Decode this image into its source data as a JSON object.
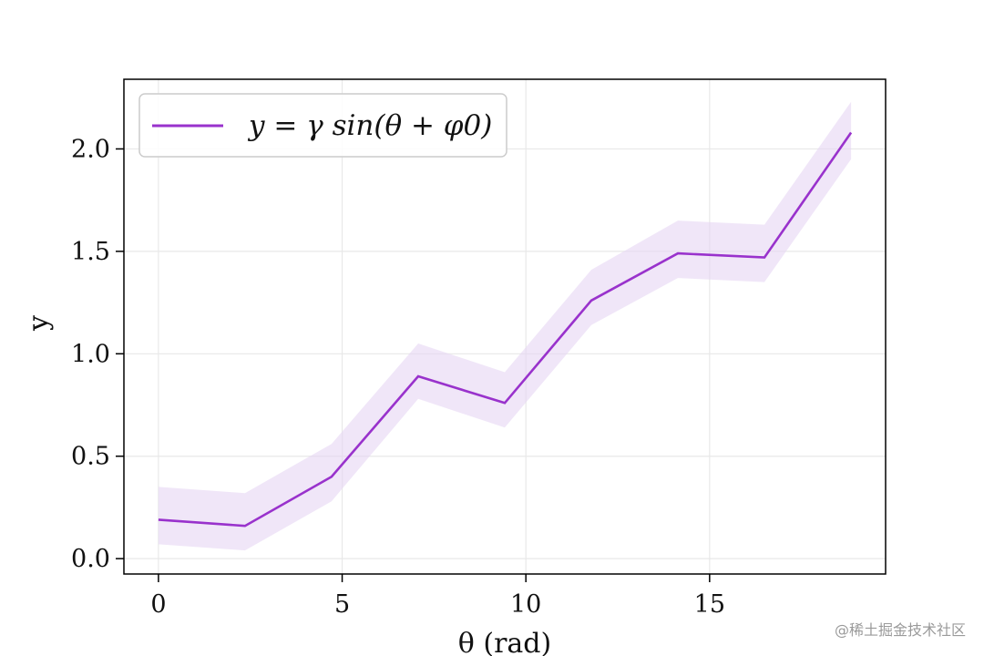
{
  "chart_data": {
    "type": "line",
    "title": "",
    "xlabel": "θ (rad)",
    "ylabel": "y",
    "xlim": [
      -0.94,
      19.79
    ],
    "ylim": [
      -0.075,
      2.34
    ],
    "grid": true,
    "legend_position": "upper-left",
    "x_ticks": [
      0,
      5,
      10,
      15
    ],
    "x_tick_labels": [
      "0",
      "5",
      "10",
      "15"
    ],
    "y_ticks": [
      0.0,
      0.5,
      1.0,
      1.5,
      2.0
    ],
    "y_tick_labels": [
      "0.0",
      "0.5",
      "1.0",
      "1.5",
      "2.0"
    ],
    "series": [
      {
        "name": "y = γ sin(θ + φ0)",
        "color": "#9932CC",
        "band_color": "#E6D6F4",
        "x": [
          0.0,
          2.356,
          4.712,
          7.069,
          9.425,
          11.781,
          14.137,
          16.493,
          18.85
        ],
        "y": [
          0.19,
          0.16,
          0.4,
          0.89,
          0.76,
          1.26,
          1.49,
          1.47,
          2.08
        ],
        "y_lower": [
          0.07,
          0.04,
          0.28,
          0.78,
          0.64,
          1.14,
          1.37,
          1.35,
          1.95
        ],
        "y_upper": [
          0.35,
          0.32,
          0.56,
          1.05,
          0.91,
          1.41,
          1.65,
          1.63,
          2.23
        ]
      }
    ]
  },
  "watermark": "@稀土掘金技术社区"
}
